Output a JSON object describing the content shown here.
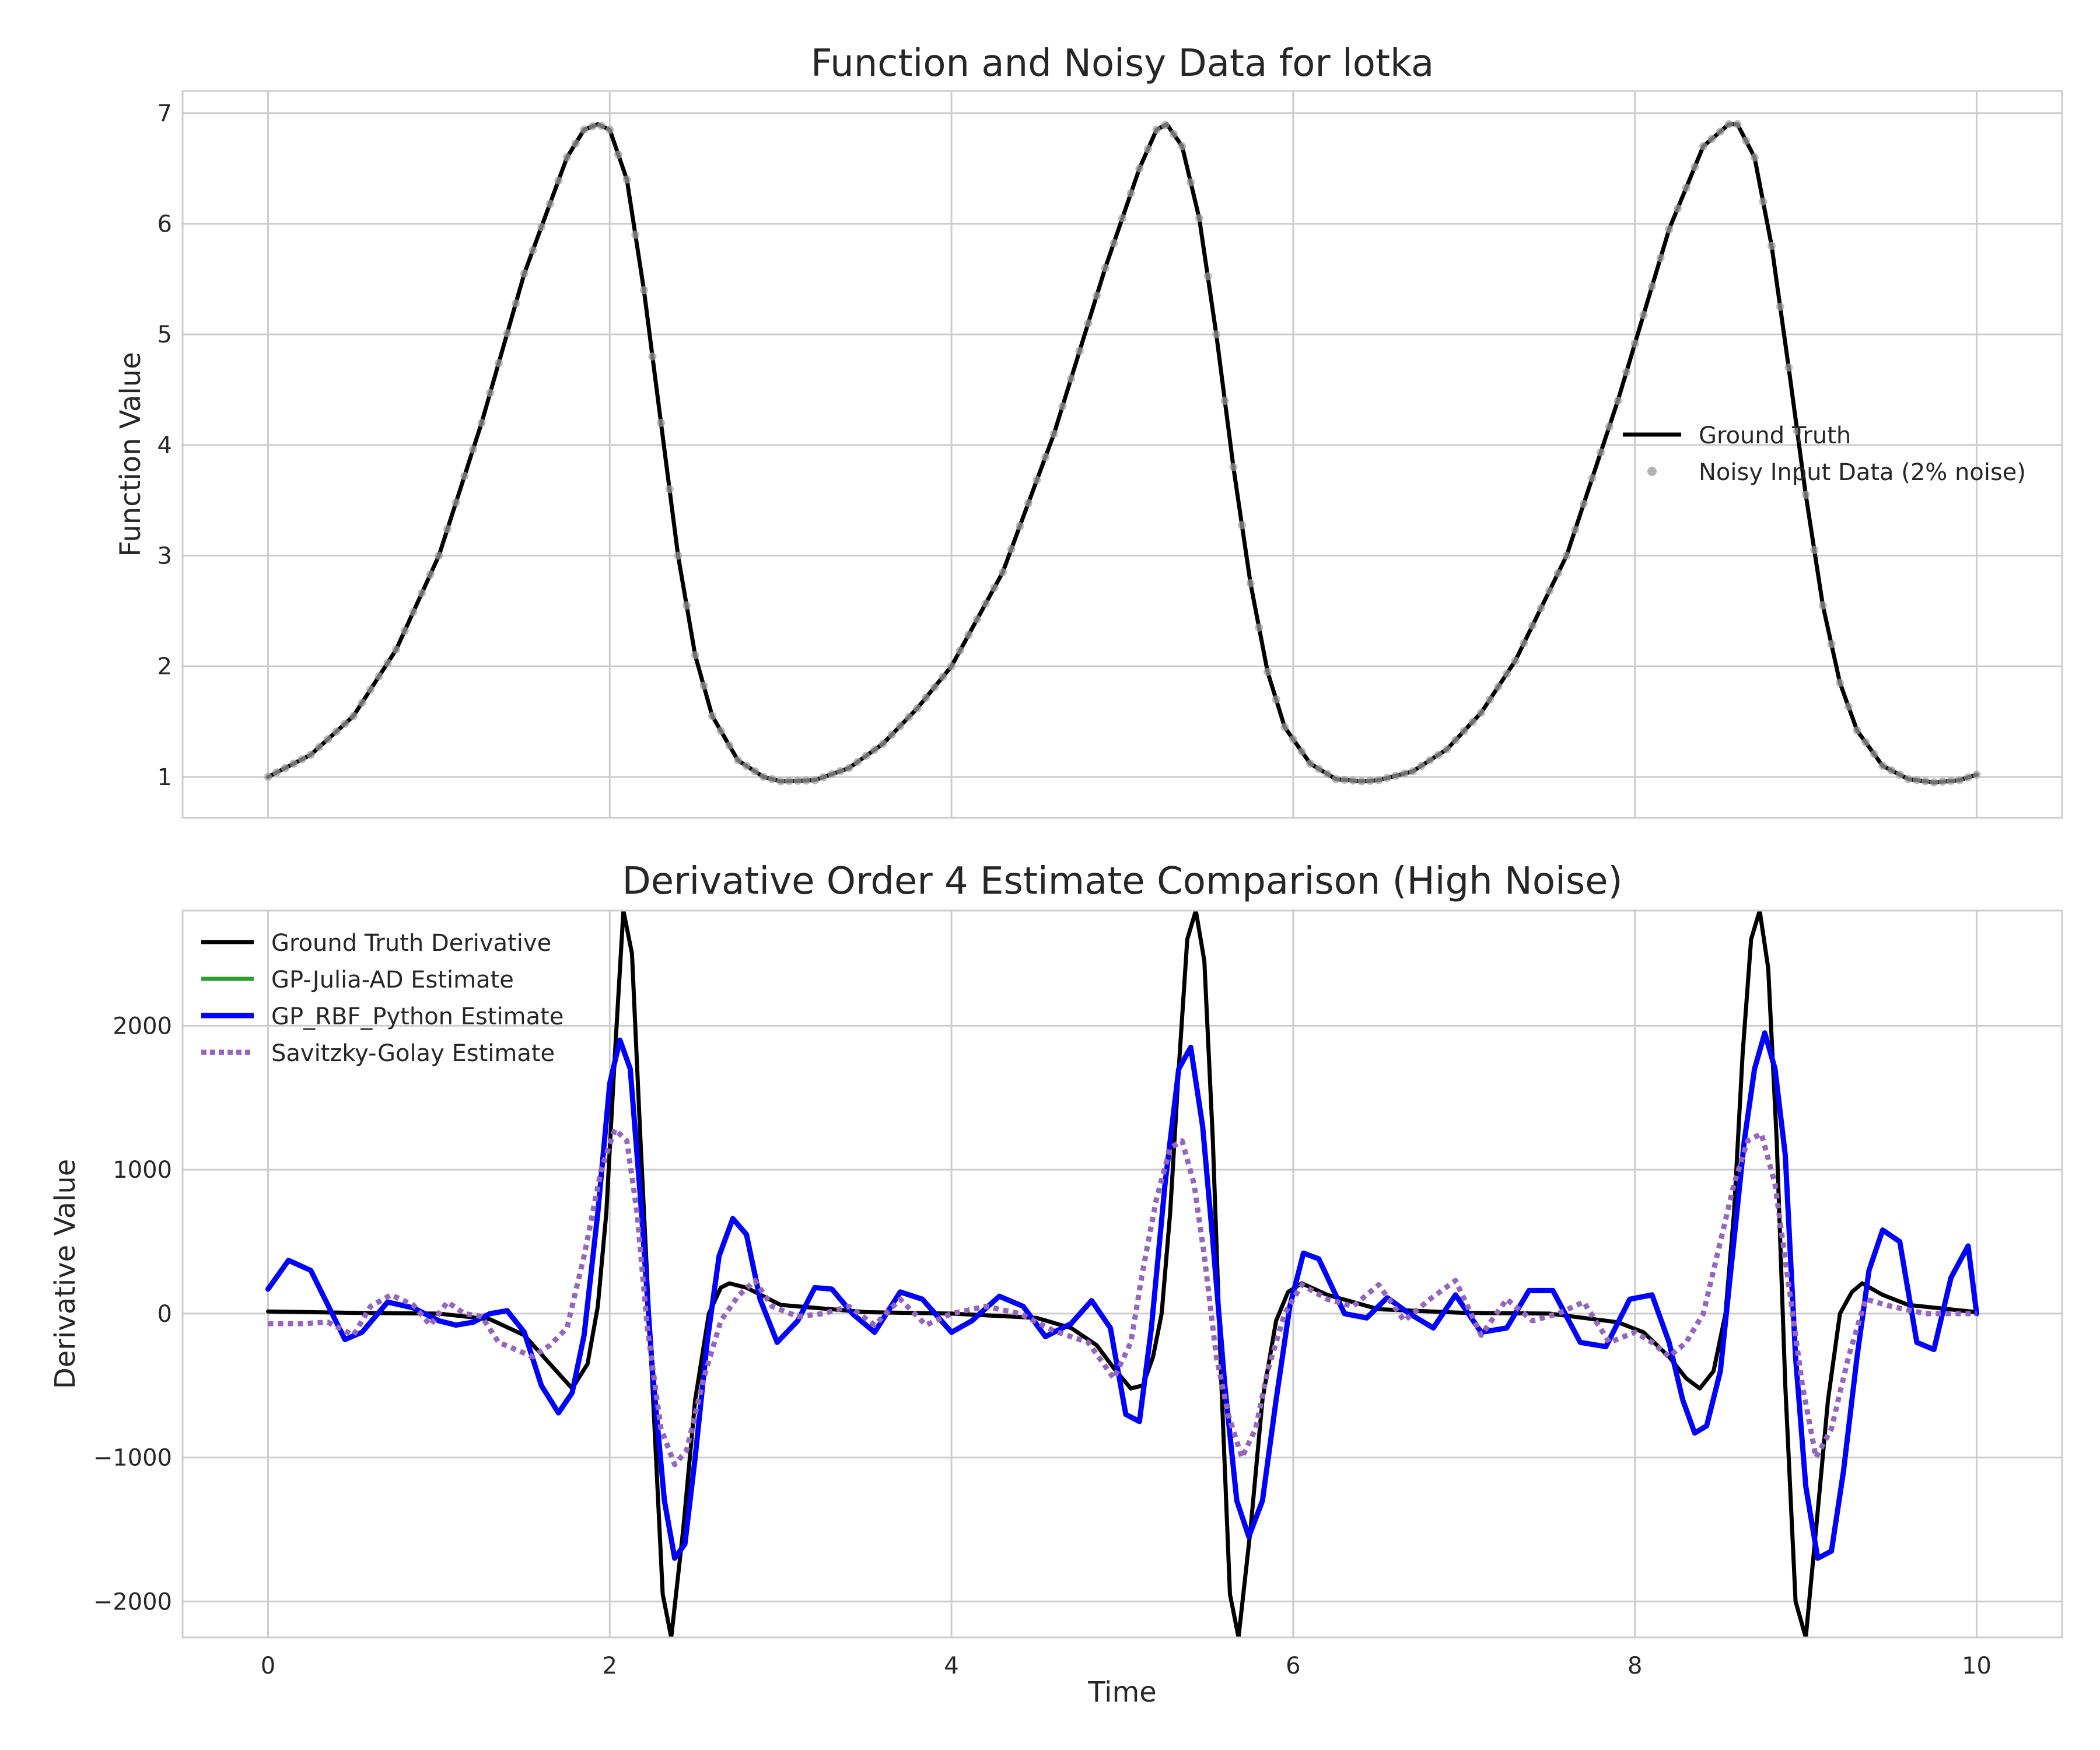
{
  "chart_data": [
    {
      "type": "line",
      "title": "Function and Noisy Data for lotka",
      "xlabel": "",
      "ylabel": "Function Value",
      "xlim": [
        -0.5,
        10.5
      ],
      "ylim": [
        0.63,
        7.2
      ],
      "x_ticks": [
        0,
        2,
        4,
        6,
        8,
        10
      ],
      "x_tick_labels_shown": false,
      "y_ticks": [
        1,
        2,
        3,
        4,
        5,
        6,
        7
      ],
      "grid": true,
      "legend": {
        "placement": "center-right"
      },
      "series": [
        {
          "name": "Ground Truth",
          "style": "line",
          "color": "#000000",
          "x": [
            0,
            0.25,
            0.5,
            0.75,
            1.0,
            1.25,
            1.5,
            1.75,
            1.85,
            1.93,
            2.0,
            2.1,
            2.2,
            2.3,
            2.4,
            2.5,
            2.6,
            2.75,
            2.9,
            3.0,
            3.2,
            3.4,
            3.6,
            3.8,
            4.0,
            4.3,
            4.6,
            4.9,
            5.1,
            5.2,
            5.26,
            5.35,
            5.45,
            5.55,
            5.65,
            5.75,
            5.85,
            5.95,
            6.1,
            6.25,
            6.4,
            6.5,
            6.7,
            6.9,
            7.1,
            7.3,
            7.6,
            7.9,
            8.2,
            8.4,
            8.55,
            8.6,
            8.7,
            8.8,
            8.9,
            9.0,
            9.1,
            9.2,
            9.3,
            9.45,
            9.6,
            9.75,
            9.9,
            10.0
          ],
          "y": [
            1.0,
            1.2,
            1.55,
            2.15,
            3.0,
            4.2,
            5.55,
            6.6,
            6.85,
            6.9,
            6.85,
            6.4,
            5.4,
            4.2,
            3.0,
            2.1,
            1.55,
            1.15,
            1.0,
            0.96,
            0.97,
            1.08,
            1.3,
            1.62,
            2.0,
            2.85,
            4.1,
            5.6,
            6.5,
            6.85,
            6.9,
            6.7,
            6.05,
            5.0,
            3.8,
            2.75,
            1.95,
            1.45,
            1.12,
            0.98,
            0.96,
            0.97,
            1.05,
            1.25,
            1.58,
            2.05,
            3.0,
            4.4,
            5.95,
            6.7,
            6.9,
            6.9,
            6.6,
            5.8,
            4.7,
            3.55,
            2.55,
            1.85,
            1.42,
            1.1,
            0.98,
            0.95,
            0.97,
            1.02
          ]
        },
        {
          "name": "Noisy Input Data (2% noise)",
          "style": "points",
          "color": "#a0a0a0"
        }
      ]
    },
    {
      "type": "line",
      "title": "Derivative Order 4 Estimate Comparison (High Noise)",
      "xlabel": "Time",
      "ylabel": "Derivative Value",
      "xlim": [
        -0.5,
        10.5
      ],
      "ylim": [
        -2250,
        2800
      ],
      "x_ticks": [
        0,
        2,
        4,
        6,
        8,
        10
      ],
      "y_ticks": [
        -2000,
        -1000,
        0,
        1000,
        2000
      ],
      "grid": true,
      "legend": {
        "placement": "top-left"
      },
      "series": [
        {
          "name": "Ground Truth Derivative",
          "color": "#000000",
          "style": "solid",
          "x": [
            0,
            0.5,
            1.0,
            1.3,
            1.5,
            1.65,
            1.78,
            1.87,
            1.93,
            1.98,
            2.03,
            2.08,
            2.13,
            2.18,
            2.25,
            2.31,
            2.36,
            2.43,
            2.5,
            2.58,
            2.65,
            2.7,
            2.8,
            3.0,
            3.5,
            4.0,
            4.5,
            4.7,
            4.85,
            4.95,
            5.05,
            5.12,
            5.18,
            5.23,
            5.28,
            5.33,
            5.38,
            5.43,
            5.48,
            5.53,
            5.58,
            5.63,
            5.68,
            5.75,
            5.82,
            5.9,
            5.97,
            6.05,
            6.2,
            6.5,
            7.0,
            7.5,
            7.9,
            8.05,
            8.2,
            8.3,
            8.38,
            8.46,
            8.53,
            8.58,
            8.63,
            8.68,
            8.73,
            8.78,
            8.83,
            8.88,
            8.94,
            9.0,
            9.06,
            9.13,
            9.2,
            9.27,
            9.33,
            9.45,
            9.6,
            10.0
          ],
          "y": [
            15,
            5,
            0,
            -40,
            -150,
            -350,
            -520,
            -350,
            50,
            700,
            1800,
            2800,
            2500,
            1200,
            -500,
            -1950,
            -2250,
            -1500,
            -600,
            0,
            180,
            210,
            180,
            60,
            10,
            0,
            -30,
            -100,
            -220,
            -380,
            -520,
            -500,
            -300,
            0,
            700,
            1700,
            2600,
            2800,
            2450,
            1200,
            -500,
            -1950,
            -2250,
            -1500,
            -600,
            -50,
            150,
            210,
            130,
            30,
            5,
            0,
            -60,
            -130,
            -300,
            -450,
            -520,
            -400,
            0,
            700,
            1800,
            2600,
            2800,
            2400,
            1200,
            -500,
            -2000,
            -2250,
            -1500,
            -600,
            0,
            150,
            210,
            130,
            60,
            10
          ]
        },
        {
          "name": "GP-Julia-AD Estimate",
          "color": "#2ca02c",
          "style": "solid",
          "x": [],
          "y": []
        },
        {
          "name": "GP_RBF_Python Estimate",
          "color": "#0000ff",
          "style": "solid",
          "x": [
            0,
            0.12,
            0.25,
            0.35,
            0.45,
            0.55,
            0.7,
            0.85,
            1.0,
            1.1,
            1.2,
            1.3,
            1.4,
            1.5,
            1.6,
            1.7,
            1.78,
            1.85,
            1.93,
            2.0,
            2.06,
            2.12,
            2.18,
            2.25,
            2.32,
            2.38,
            2.44,
            2.5,
            2.57,
            2.64,
            2.72,
            2.8,
            2.88,
            2.98,
            3.1,
            3.2,
            3.3,
            3.42,
            3.55,
            3.7,
            3.83,
            4.0,
            4.12,
            4.28,
            4.42,
            4.55,
            4.7,
            4.82,
            4.93,
            5.02,
            5.1,
            5.17,
            5.25,
            5.33,
            5.4,
            5.47,
            5.53,
            5.6,
            5.67,
            5.74,
            5.82,
            5.9,
            5.98,
            6.06,
            6.15,
            6.3,
            6.43,
            6.55,
            6.68,
            6.82,
            6.95,
            7.1,
            7.25,
            7.38,
            7.52,
            7.68,
            7.83,
            7.97,
            8.1,
            8.2,
            8.28,
            8.35,
            8.42,
            8.5,
            8.57,
            8.64,
            8.7,
            8.76,
            8.82,
            8.88,
            8.94,
            9.0,
            9.07,
            9.15,
            9.22,
            9.3,
            9.37,
            9.45,
            9.55,
            9.65,
            9.75,
            9.85,
            9.95,
            10.0
          ],
          "y": [
            170,
            370,
            300,
            60,
            -180,
            -130,
            80,
            40,
            -50,
            -80,
            -60,
            0,
            20,
            -130,
            -500,
            -690,
            -550,
            -150,
            700,
            1600,
            1900,
            1700,
            800,
            -400,
            -1300,
            -1700,
            -1600,
            -1000,
            -200,
            400,
            660,
            550,
            100,
            -200,
            -50,
            180,
            170,
            0,
            -130,
            150,
            100,
            -130,
            -50,
            120,
            50,
            -160,
            -70,
            90,
            -100,
            -700,
            -750,
            -100,
            900,
            1700,
            1850,
            1300,
            500,
            -500,
            -1300,
            -1550,
            -1300,
            -600,
            50,
            420,
            380,
            0,
            -30,
            110,
            0,
            -100,
            130,
            -130,
            -100,
            160,
            160,
            -200,
            -230,
            100,
            130,
            -200,
            -600,
            -830,
            -780,
            -400,
            400,
            1200,
            1700,
            1950,
            1700,
            1100,
            -300,
            -1200,
            -1700,
            -1650,
            -1100,
            -300,
            300,
            580,
            500,
            -200,
            -250,
            250,
            470,
            0
          ]
        },
        {
          "name": "Savitzky-Golay Estimate",
          "color": "#9467bd",
          "style": "dotted",
          "x": [
            0,
            0.2,
            0.35,
            0.5,
            0.6,
            0.72,
            0.85,
            0.95,
            1.05,
            1.15,
            1.25,
            1.35,
            1.45,
            1.55,
            1.65,
            1.75,
            1.85,
            1.95,
            2.03,
            2.1,
            2.16,
            2.22,
            2.3,
            2.38,
            2.45,
            2.55,
            2.65,
            2.75,
            2.85,
            2.95,
            3.1,
            3.25,
            3.4,
            3.55,
            3.7,
            3.85,
            4.0,
            4.2,
            4.4,
            4.6,
            4.8,
            4.95,
            5.05,
            5.12,
            5.2,
            5.28,
            5.35,
            5.42,
            5.48,
            5.55,
            5.62,
            5.7,
            5.78,
            5.85,
            5.95,
            6.05,
            6.2,
            6.35,
            6.5,
            6.65,
            6.8,
            6.95,
            7.1,
            7.25,
            7.4,
            7.55,
            7.7,
            7.85,
            8.0,
            8.1,
            8.2,
            8.3,
            8.4,
            8.5,
            8.58,
            8.66,
            8.74,
            8.82,
            8.9,
            8.98,
            9.06,
            9.15,
            9.25,
            9.35,
            9.5,
            9.7,
            10.0
          ],
          "y": [
            -70,
            -70,
            -60,
            -150,
            50,
            130,
            60,
            -80,
            80,
            0,
            -20,
            -200,
            -250,
            -300,
            -220,
            -100,
            400,
            1000,
            1280,
            1200,
            700,
            -100,
            -800,
            -1050,
            -950,
            -450,
            -50,
            120,
            230,
            50,
            -20,
            0,
            50,
            -80,
            100,
            -80,
            0,
            50,
            0,
            -120,
            -200,
            -450,
            -200,
            300,
            800,
            1150,
            1200,
            900,
            400,
            -300,
            -700,
            -1000,
            -800,
            -400,
            0,
            200,
            100,
            50,
            200,
            -50,
            100,
            230,
            -150,
            100,
            -50,
            0,
            80,
            -200,
            -130,
            -200,
            -300,
            -200,
            0,
            500,
            900,
            1200,
            1250,
            900,
            200,
            -500,
            -1000,
            -800,
            -300,
            100,
            50,
            0,
            0
          ]
        }
      ]
    }
  ]
}
